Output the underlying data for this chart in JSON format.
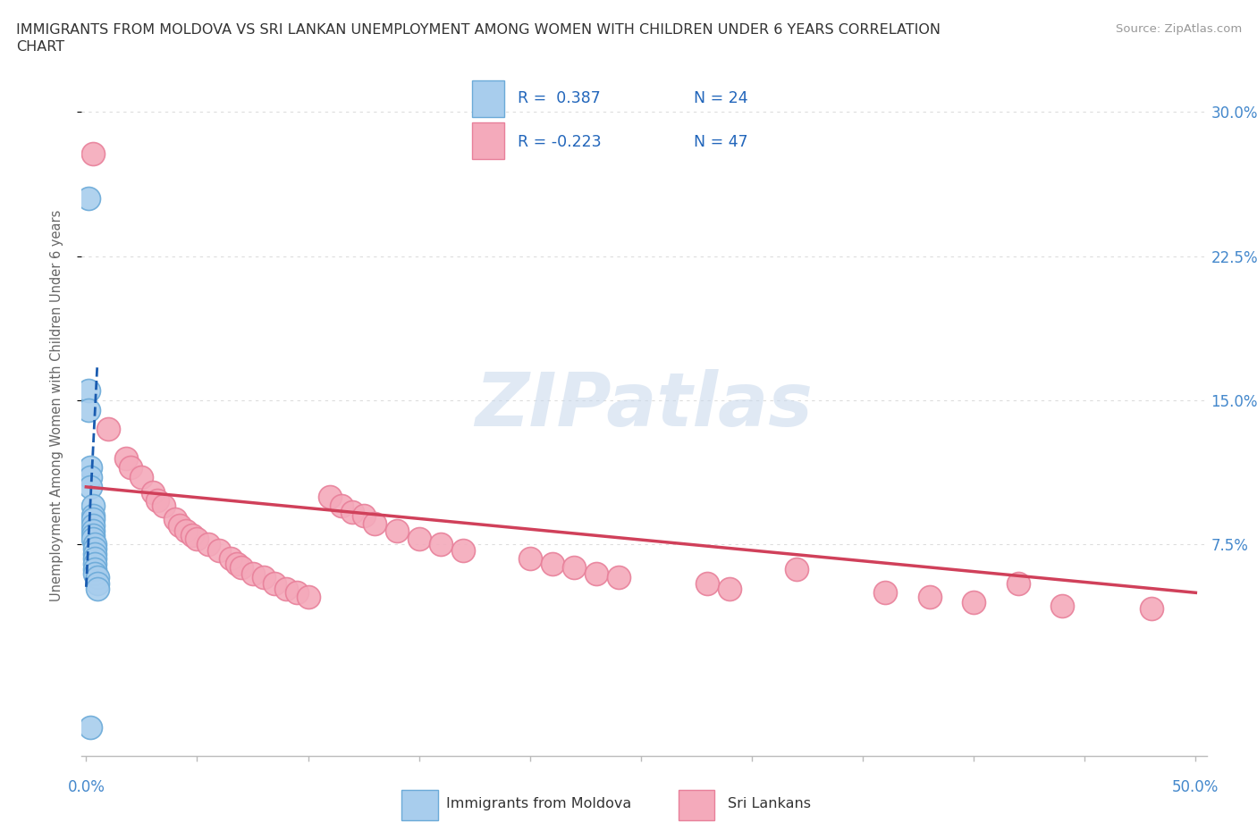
{
  "title_line1": "IMMIGRANTS FROM MOLDOVA VS SRI LANKAN UNEMPLOYMENT AMONG WOMEN WITH CHILDREN UNDER 6 YEARS CORRELATION",
  "title_line2": "CHART",
  "source": "Source: ZipAtlas.com",
  "ylabel": "Unemployment Among Women with Children Under 6 years",
  "ytick_labels": [
    "7.5%",
    "15.0%",
    "22.5%",
    "30.0%"
  ],
  "ytick_values": [
    0.075,
    0.15,
    0.225,
    0.3
  ],
  "xtick_values": [
    0.0,
    0.05,
    0.1,
    0.15,
    0.2,
    0.25,
    0.3,
    0.35,
    0.4,
    0.45,
    0.5
  ],
  "xlim": [
    -0.002,
    0.505
  ],
  "ylim": [
    -0.035,
    0.33
  ],
  "moldova_color": "#A8CDED",
  "moldova_edge_color": "#6BAAD8",
  "srilanka_color": "#F4AABB",
  "srilanka_edge_color": "#E8809A",
  "trendline_moldova_color": "#1A5CB0",
  "trendline_srilanka_color": "#D0405A",
  "legend_r_moldova": "R =  0.387",
  "legend_n_moldova": "N = 24",
  "legend_r_srilanka": "R = -0.223",
  "legend_n_srilanka": "N = 47",
  "watermark": "ZIPatlas",
  "moldova_scatter": [
    [
      0.001,
      0.255
    ],
    [
      0.001,
      0.155
    ],
    [
      0.001,
      0.145
    ],
    [
      0.002,
      0.115
    ],
    [
      0.002,
      0.11
    ],
    [
      0.002,
      0.105
    ],
    [
      0.003,
      0.095
    ],
    [
      0.003,
      0.09
    ],
    [
      0.003,
      0.088
    ],
    [
      0.003,
      0.085
    ],
    [
      0.003,
      0.082
    ],
    [
      0.003,
      0.08
    ],
    [
      0.003,
      0.078
    ],
    [
      0.004,
      0.075
    ],
    [
      0.004,
      0.073
    ],
    [
      0.004,
      0.07
    ],
    [
      0.004,
      0.068
    ],
    [
      0.004,
      0.065
    ],
    [
      0.004,
      0.062
    ],
    [
      0.004,
      0.06
    ],
    [
      0.005,
      0.058
    ],
    [
      0.005,
      0.055
    ],
    [
      0.005,
      0.052
    ],
    [
      0.002,
      -0.02
    ]
  ],
  "srilanka_scatter": [
    [
      0.003,
      0.278
    ],
    [
      0.01,
      0.135
    ],
    [
      0.018,
      0.12
    ],
    [
      0.02,
      0.115
    ],
    [
      0.025,
      0.11
    ],
    [
      0.03,
      0.102
    ],
    [
      0.032,
      0.098
    ],
    [
      0.035,
      0.095
    ],
    [
      0.04,
      0.088
    ],
    [
      0.042,
      0.085
    ],
    [
      0.045,
      0.082
    ],
    [
      0.048,
      0.08
    ],
    [
      0.05,
      0.078
    ],
    [
      0.055,
      0.075
    ],
    [
      0.06,
      0.072
    ],
    [
      0.065,
      0.068
    ],
    [
      0.068,
      0.065
    ],
    [
      0.07,
      0.063
    ],
    [
      0.075,
      0.06
    ],
    [
      0.08,
      0.058
    ],
    [
      0.085,
      0.055
    ],
    [
      0.09,
      0.052
    ],
    [
      0.095,
      0.05
    ],
    [
      0.1,
      0.048
    ],
    [
      0.11,
      0.1
    ],
    [
      0.115,
      0.095
    ],
    [
      0.12,
      0.092
    ],
    [
      0.125,
      0.09
    ],
    [
      0.13,
      0.086
    ],
    [
      0.14,
      0.082
    ],
    [
      0.15,
      0.078
    ],
    [
      0.16,
      0.075
    ],
    [
      0.17,
      0.072
    ],
    [
      0.2,
      0.068
    ],
    [
      0.21,
      0.065
    ],
    [
      0.22,
      0.063
    ],
    [
      0.23,
      0.06
    ],
    [
      0.24,
      0.058
    ],
    [
      0.28,
      0.055
    ],
    [
      0.29,
      0.052
    ],
    [
      0.32,
      0.062
    ],
    [
      0.36,
      0.05
    ],
    [
      0.38,
      0.048
    ],
    [
      0.4,
      0.045
    ],
    [
      0.42,
      0.055
    ],
    [
      0.44,
      0.043
    ],
    [
      0.48,
      0.042
    ]
  ],
  "moldova_trendline": [
    [
      0.0,
      0.053
    ],
    [
      0.005,
      0.168
    ]
  ],
  "srilanka_trendline": [
    [
      0.0,
      0.105
    ],
    [
      0.5,
      0.05
    ]
  ]
}
